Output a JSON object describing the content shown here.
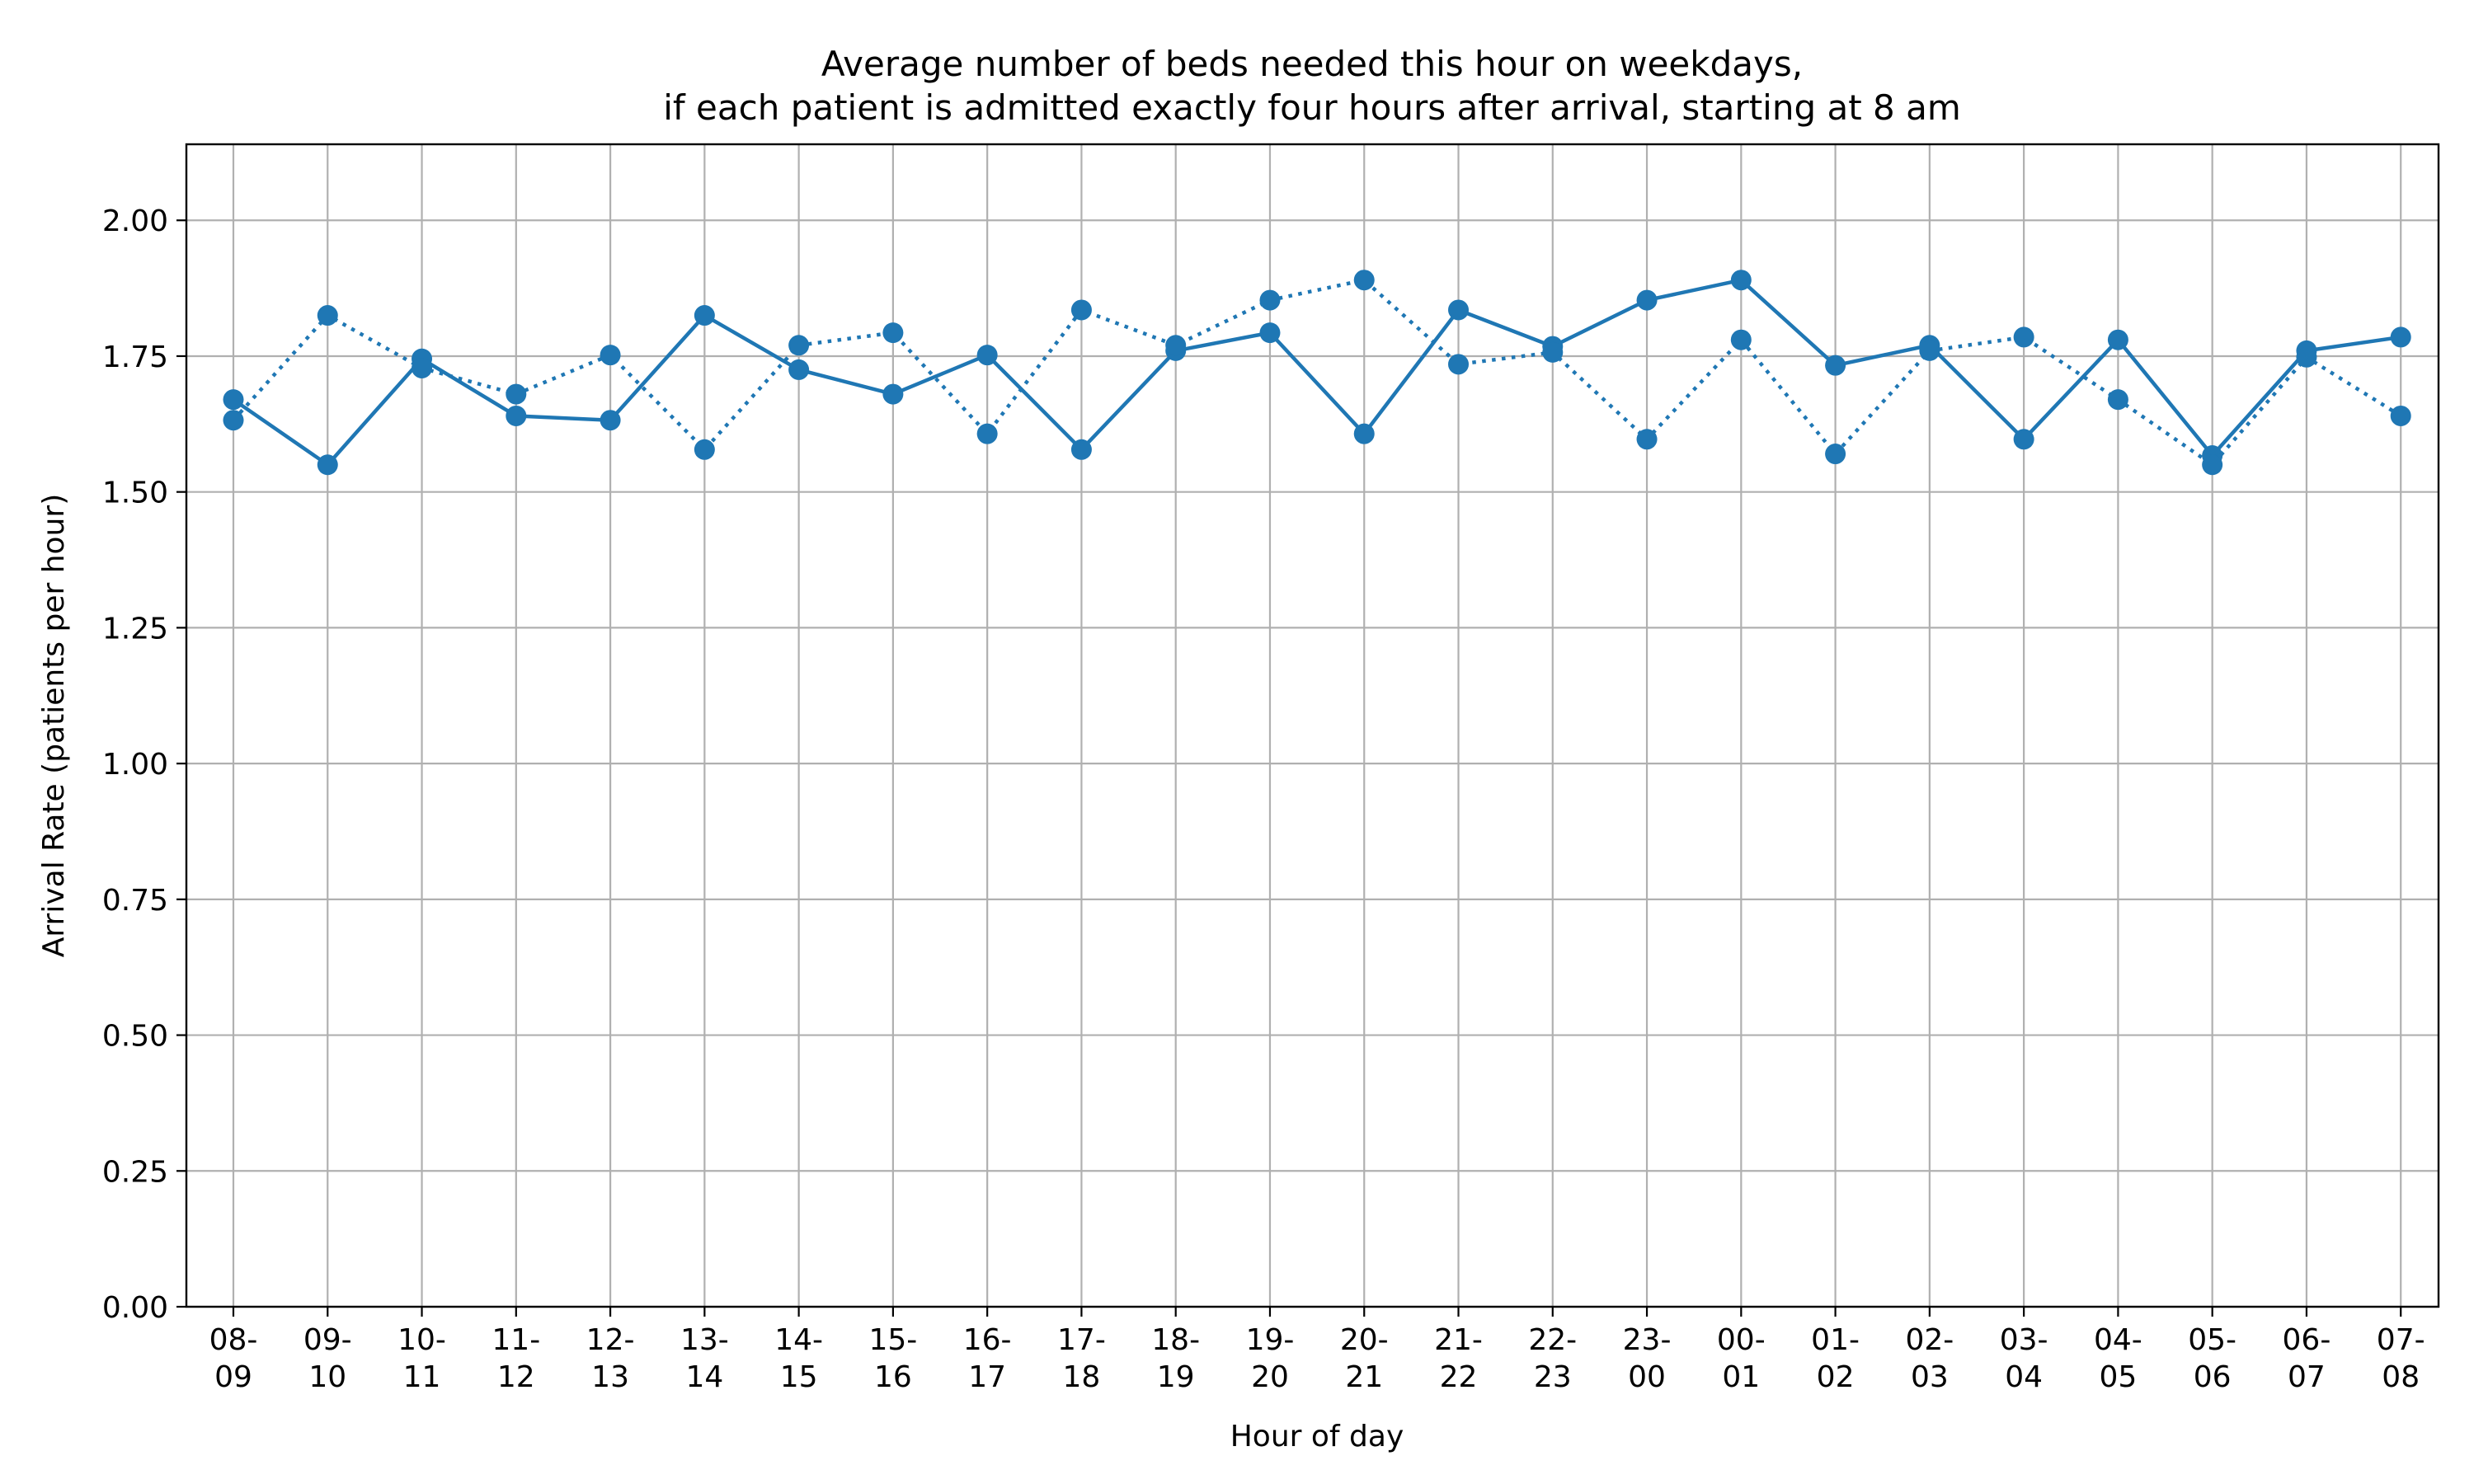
{
  "chart_data": {
    "type": "line",
    "title_line1": "Average number of beds needed this hour on weekdays,",
    "title_line2": "if each patient is admitted exactly four hours after arrival, starting at 8 am",
    "xlabel": "Hour of day",
    "ylabel": "Arrival Rate (patients per hour)",
    "ylim": [
      0,
      2.14
    ],
    "yticks": [
      "0.00",
      "0.25",
      "0.50",
      "0.75",
      "1.00",
      "1.25",
      "1.50",
      "1.75",
      "2.00"
    ],
    "ytick_values": [
      0,
      0.25,
      0.5,
      0.75,
      1.0,
      1.25,
      1.5,
      1.75,
      2.0
    ],
    "categories": [
      [
        "08-",
        "09"
      ],
      [
        "09-",
        "10"
      ],
      [
        "10-",
        "11"
      ],
      [
        "11-",
        "12"
      ],
      [
        "12-",
        "13"
      ],
      [
        "13-",
        "14"
      ],
      [
        "14-",
        "15"
      ],
      [
        "15-",
        "16"
      ],
      [
        "16-",
        "17"
      ],
      [
        "17-",
        "18"
      ],
      [
        "18-",
        "19"
      ],
      [
        "19-",
        "20"
      ],
      [
        "20-",
        "21"
      ],
      [
        "21-",
        "22"
      ],
      [
        "22-",
        "23"
      ],
      [
        "23-",
        "00"
      ],
      [
        "00-",
        "01"
      ],
      [
        "01-",
        "02"
      ],
      [
        "02-",
        "03"
      ],
      [
        "03-",
        "04"
      ],
      [
        "04-",
        "05"
      ],
      [
        "05-",
        "06"
      ],
      [
        "06-",
        "07"
      ],
      [
        "07-",
        "08"
      ]
    ],
    "grid": true,
    "color": "#1f77b4",
    "series": [
      {
        "style": "solid",
        "values": [
          1.67,
          1.55,
          1.745,
          1.64,
          1.632,
          1.825,
          1.725,
          1.68,
          1.752,
          1.578,
          1.76,
          1.793,
          1.607,
          1.835,
          1.768,
          1.853,
          1.89,
          1.733,
          1.77,
          1.597,
          1.78,
          1.567,
          1.76,
          1.785
        ]
      },
      {
        "style": "dotted",
        "values": [
          1.632,
          1.825,
          1.728,
          1.68,
          1.752,
          1.578,
          1.77,
          1.793,
          1.607,
          1.835,
          1.77,
          1.853,
          1.89,
          1.735,
          1.757,
          1.597,
          1.78,
          1.57,
          1.76,
          1.785,
          1.67,
          1.55,
          1.748,
          1.64
        ]
      }
    ]
  }
}
